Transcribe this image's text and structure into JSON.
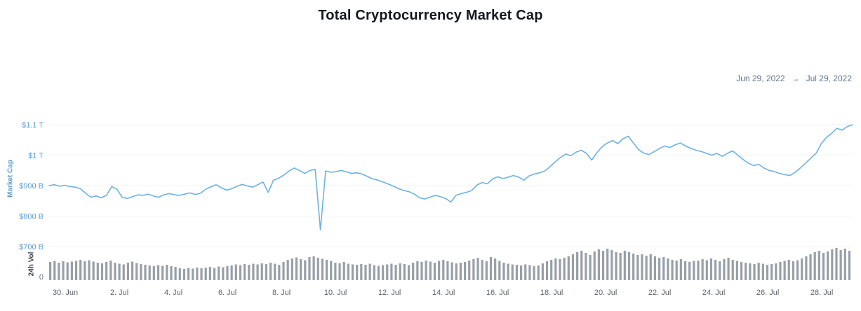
{
  "header": {
    "title": "Total Cryptocurrency Market Cap"
  },
  "date_range": {
    "from": "Jun 29, 2022",
    "arrow": "→",
    "to": "Jul 29, 2022"
  },
  "chart_data": {
    "type": "line",
    "title": "Total Cryptocurrency Market Cap",
    "x_range": [
      "Jun 29, 2022",
      "Jul 29, 2022"
    ],
    "y_axis": {
      "label": "Market Cap",
      "unit": "USD",
      "ticks": [
        {
          "label": "$1.1 T",
          "value": 1100
        },
        {
          "label": "$1 T",
          "value": 1000
        },
        {
          "label": "$900 B",
          "value": 900
        },
        {
          "label": "$800 B",
          "value": 800
        },
        {
          "label": "$700 B",
          "value": 700
        }
      ]
    },
    "volume_axis": {
      "label": "24h Vol",
      "zero_label": "0"
    },
    "x_ticks": [
      "30. Jun",
      "2. Jul",
      "4. Jul",
      "6. Jul",
      "8. Jul",
      "10. Jul",
      "12. Jul",
      "14. Jul",
      "16. Jul",
      "18. Jul",
      "20. Jul",
      "22. Jul",
      "24. Jul",
      "26. Jul",
      "28. Jul"
    ],
    "colors": {
      "line": "#6cb2e2",
      "axis_blue": "#579ed6",
      "volume_gray": "#989fa7",
      "axis_text": "#5f6368",
      "grid": "#f1f3f6"
    },
    "market_cap_billions": [
      900,
      903,
      898,
      901,
      897,
      895,
      890,
      875,
      862,
      866,
      860,
      868,
      897,
      888,
      862,
      858,
      864,
      870,
      868,
      872,
      866,
      862,
      870,
      874,
      870,
      868,
      872,
      876,
      871,
      875,
      888,
      896,
      903,
      893,
      885,
      890,
      898,
      904,
      899,
      895,
      903,
      912,
      878,
      918,
      924,
      935,
      948,
      958,
      950,
      940,
      950,
      953,
      755,
      948,
      944,
      946,
      950,
      945,
      940,
      942,
      938,
      930,
      922,
      918,
      912,
      905,
      898,
      890,
      884,
      880,
      872,
      860,
      856,
      862,
      868,
      864,
      858,
      846,
      868,
      874,
      878,
      884,
      902,
      910,
      906,
      922,
      929,
      923,
      928,
      933,
      928,
      918,
      932,
      938,
      942,
      948,
      962,
      978,
      992,
      1004,
      998,
      1010,
      1016,
      1006,
      984,
      1008,
      1028,
      1040,
      1048,
      1038,
      1054,
      1062,
      1040,
      1018,
      1006,
      1002,
      1012,
      1022,
      1030,
      1025,
      1034,
      1040,
      1030,
      1022,
      1016,
      1012,
      1006,
      1000,
      1006,
      996,
      1006,
      1014,
      1000,
      986,
      974,
      966,
      970,
      958,
      950,
      946,
      940,
      936,
      933,
      944,
      958,
      974,
      990,
      1006,
      1038,
      1058,
      1072,
      1088,
      1082,
      1094,
      1100
    ],
    "volume_billions": [
      52,
      55,
      50,
      54,
      51,
      53,
      55,
      58,
      54,
      57,
      53,
      50,
      48,
      52,
      56,
      50,
      47,
      45,
      50,
      53,
      49,
      46,
      44,
      42,
      40,
      43,
      41,
      44,
      40,
      38,
      34,
      32,
      35,
      33,
      36,
      34,
      36,
      38,
      35,
      39,
      37,
      40,
      42,
      45,
      43,
      46,
      44,
      47,
      45,
      48,
      46,
      50,
      47,
      44,
      52,
      58,
      62,
      65,
      60,
      57,
      66,
      68,
      64,
      61,
      58,
      55,
      50,
      48,
      52,
      47,
      45,
      44,
      46,
      44,
      47,
      43,
      41,
      43,
      45,
      47,
      44,
      48,
      46,
      43,
      50,
      54,
      52,
      56,
      53,
      50,
      55,
      58,
      54,
      51,
      48,
      50,
      52,
      56,
      60,
      64,
      58,
      54,
      66,
      62,
      55,
      50,
      47,
      45,
      44,
      42,
      45,
      43,
      40,
      42,
      48,
      54,
      58,
      62,
      60,
      64,
      68,
      74,
      80,
      84,
      78,
      72,
      82,
      88,
      84,
      90,
      86,
      80,
      78,
      84,
      80,
      76,
      72,
      74,
      70,
      74,
      68,
      64,
      66,
      62,
      58,
      56,
      60,
      54,
      52,
      55,
      56,
      60,
      57,
      62,
      58,
      54,
      60,
      64,
      58,
      55,
      52,
      50,
      48,
      46,
      50,
      47,
      44,
      46,
      48,
      52,
      55,
      58,
      54,
      57,
      62,
      68,
      74,
      80,
      84,
      78,
      82,
      88,
      92,
      86,
      90,
      84
    ]
  }
}
